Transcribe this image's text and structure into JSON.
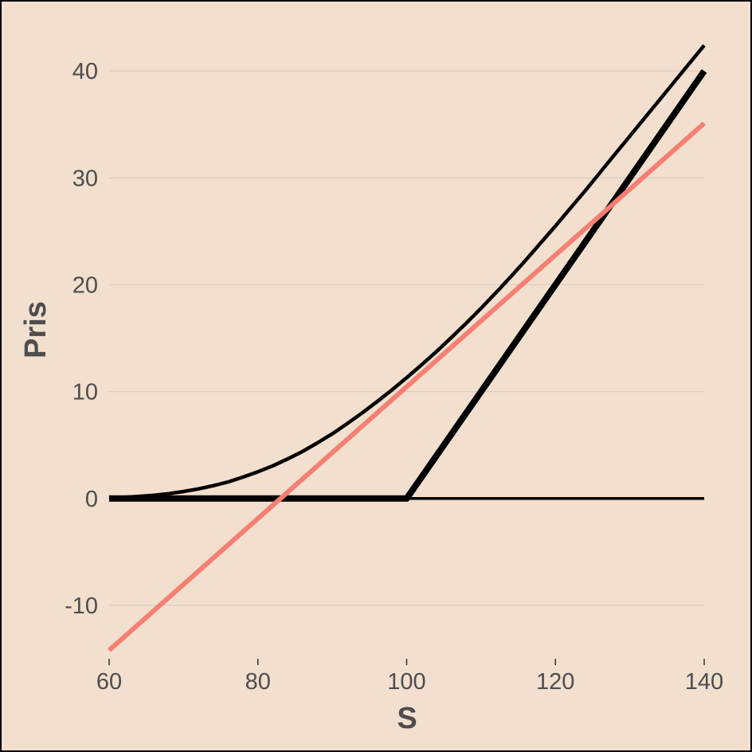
{
  "chart_data": {
    "type": "line",
    "title": "",
    "xlabel": "S",
    "ylabel": "Pris",
    "xlim": [
      60,
      140
    ],
    "ylim": [
      -15,
      45
    ],
    "x_ticks": [
      60,
      80,
      100,
      120,
      140
    ],
    "y_ticks": [
      -10,
      0,
      10,
      20,
      30,
      40
    ],
    "grid": "horizontal",
    "legend": "none",
    "colors": {
      "background": "#f2dfce",
      "grid": "#d6c8bb",
      "black": "#000000",
      "tangent": "#f47f72"
    },
    "series": [
      {
        "role": "option-price",
        "color": "#000000",
        "x": [
          60,
          62,
          64,
          66,
          68,
          70,
          72,
          74,
          76,
          78,
          80,
          82,
          84,
          86,
          88,
          90,
          92,
          94,
          96,
          98,
          100,
          102,
          104,
          106,
          108,
          110,
          112,
          114,
          116,
          118,
          120,
          122,
          124,
          126,
          128,
          130,
          132,
          134,
          136,
          138,
          140
        ],
        "y": [
          0.05,
          0.1,
          0.2,
          0.3,
          0.45,
          0.65,
          0.9,
          1.2,
          1.55,
          2.0,
          2.5,
          3.05,
          3.7,
          4.4,
          5.2,
          6.05,
          7.0,
          8.0,
          9.05,
          10.15,
          11.3,
          12.5,
          13.75,
          15.05,
          16.4,
          17.8,
          19.25,
          20.75,
          22.3,
          23.9,
          25.5,
          27.15,
          28.8,
          30.5,
          32.2,
          33.9,
          35.6,
          37.3,
          39.0,
          40.7,
          42.4
        ]
      },
      {
        "role": "payoff",
        "color": "#000000",
        "x": [
          60,
          100,
          140
        ],
        "y": [
          0,
          0,
          40
        ]
      },
      {
        "role": "zero-line",
        "color": "#000000",
        "x": [
          60,
          140
        ],
        "y": [
          0,
          0
        ]
      },
      {
        "role": "tangent",
        "color": "#f47f72",
        "x": [
          60,
          140
        ],
        "y": [
          -14.2,
          35.1
        ]
      }
    ]
  }
}
